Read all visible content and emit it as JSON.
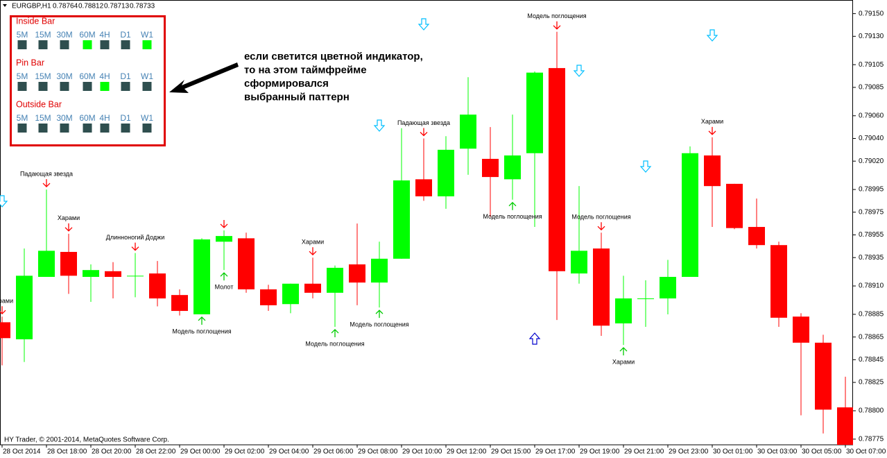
{
  "chart_data": {
    "type": "candlestick",
    "title": "EURGBP,H1",
    "ohlc_header": [
      0.78764,
      0.78812,
      0.78713,
      0.78733
    ],
    "copyright": "HY Trader, © 2001-2014, MetaQuotes Software Corp.",
    "categories": [
      "28 Oct 2014",
      null,
      "28 Oct 18:00",
      null,
      "28 Oct 20:00",
      null,
      "28 Oct 22:00",
      null,
      "29 Oct 00:00",
      null,
      "29 Oct 02:00",
      null,
      "29 Oct 04:00",
      null,
      "29 Oct 06:00",
      null,
      "29 Oct 08:00",
      null,
      "29 Oct 10:00",
      null,
      "29 Oct 12:00",
      null,
      "29 Oct 15:00",
      null,
      "29 Oct 17:00",
      null,
      "29 Oct 19:00",
      null,
      "29 Oct 21:00",
      null,
      "29 Oct 23:00",
      null,
      "30 Oct 01:00",
      null,
      "30 Oct 03:00",
      null,
      "30 Oct 05:00",
      null,
      "30 Oct 07:00"
    ],
    "open": [
      0.78878,
      0.78863,
      0.78918,
      0.7894,
      0.78918,
      0.78923,
      0.78919,
      0.78921,
      0.78902,
      0.78885,
      0.78949,
      0.78952,
      0.78907,
      0.78894,
      0.78912,
      0.78904,
      0.78929,
      0.78913,
      0.78934,
      0.79004,
      0.78989,
      0.79031,
      0.79022,
      0.79004,
      0.79027,
      0.79102,
      0.78921,
      0.78943,
      0.78877,
      0.78899,
      0.78899,
      0.78918,
      0.79025,
      0.79,
      0.78962,
      0.78946,
      0.78883,
      0.7886,
      0.78803
    ],
    "high": [
      0.78883,
      0.78943,
      0.78995,
      0.78956,
      0.78929,
      0.78931,
      0.78939,
      0.78932,
      0.78907,
      0.78952,
      0.78959,
      0.78957,
      0.78911,
      0.78912,
      0.78935,
      0.78928,
      0.78965,
      0.78949,
      0.79049,
      0.7904,
      0.79042,
      0.79094,
      0.7905,
      0.79061,
      0.79099,
      0.79134,
      0.78998,
      0.78957,
      0.78919,
      0.78915,
      0.78933,
      0.79033,
      0.79041,
      0.79,
      0.78987,
      0.78949,
      0.78886,
      0.78867,
      0.7883
    ],
    "low": [
      0.7884,
      0.78843,
      0.78918,
      0.78903,
      0.78896,
      0.78899,
      0.789,
      0.78892,
      0.78884,
      0.78885,
      0.78924,
      0.78904,
      0.78888,
      0.78886,
      0.78899,
      0.78874,
      0.78893,
      0.78891,
      0.78934,
      0.78985,
      0.78978,
      0.79008,
      0.78971,
      0.78986,
      0.78962,
      0.7888,
      0.78912,
      0.78866,
      0.78858,
      0.78874,
      0.78885,
      0.78918,
      0.78962,
      0.7896,
      0.78943,
      0.78874,
      0.78796,
      0.7878,
      0.7877
    ],
    "close": [
      0.78864,
      0.78919,
      0.78941,
      0.78919,
      0.78924,
      0.78918,
      0.78919,
      0.78899,
      0.78888,
      0.78951,
      0.78954,
      0.78907,
      0.78893,
      0.78912,
      0.78904,
      0.78926,
      0.78913,
      0.78934,
      0.79003,
      0.78989,
      0.7903,
      0.79061,
      0.79006,
      0.79025,
      0.79098,
      0.78923,
      0.78941,
      0.78875,
      0.78899,
      0.78899,
      0.78918,
      0.79027,
      0.78998,
      0.78961,
      0.78946,
      0.78882,
      0.7886,
      0.78801,
      0.7877
    ],
    "up_color": "#00ff00",
    "down_color": "#ff0000",
    "ylim": [
      0.7877,
      0.79162
    ],
    "yticks": [
      {
        "value": 0.7915,
        "label": "0.79150"
      },
      {
        "value": 0.7913,
        "label": "0.79130"
      },
      0.79105,
      0.79085,
      {
        "value": 0.7906,
        "label": "0.79060"
      },
      {
        "value": 0.7904,
        "label": "0.79040"
      },
      {
        "value": 0.7902,
        "label": "0.79020"
      },
      0.78995,
      0.78975,
      0.78955,
      0.78935,
      {
        "value": 0.7891,
        "label": "0.78910"
      },
      0.78885,
      0.78865,
      0.78845,
      0.78825,
      {
        "value": 0.788,
        "label": "0.78800"
      },
      0.78775
    ],
    "annotation_colors": {
      "above": "#ff0000",
      "below": "#00cc00"
    },
    "annotations": [
      {
        "text": "Харами",
        "candle": 0,
        "side": "above"
      },
      {
        "text": "Падающая звезда",
        "candle": 2,
        "side": "above"
      },
      {
        "text": "Харами",
        "candle": 3,
        "side": "above"
      },
      {
        "text": "Длинноногий Доджи",
        "candle": 6,
        "side": "above"
      },
      {
        "text": "Модель поглощения",
        "candle": 9,
        "side": "below"
      },
      {
        "candle": 10,
        "side": "above"
      },
      {
        "text": "Молот",
        "candle": 10,
        "side": "below"
      },
      {
        "text": "Харами",
        "candle": 14,
        "side": "above"
      },
      {
        "text": "Модель поглощения",
        "candle": 15,
        "side": "below"
      },
      {
        "text": "Модель поглощения",
        "candle": 17,
        "side": "below"
      },
      {
        "text": "Падающая звезда",
        "candle": 19,
        "side": "above"
      },
      {
        "text": "Модель поглощения",
        "candle": 23,
        "side": "below"
      },
      {
        "text": "Модель поглощения",
        "candle": 25,
        "side": "above"
      },
      {
        "text": "Модель поглощения",
        "candle": 27,
        "side": "above"
      },
      {
        "text": "Харами",
        "candle": 28,
        "side": "below"
      },
      {
        "text": "Харами",
        "candle": 32,
        "side": "above"
      }
    ]
  },
  "panel": {
    "timeframes": [
      "5M",
      "15M",
      "30M",
      "60M",
      "4H",
      "D1",
      "W1"
    ],
    "active_color": "#00ff00",
    "inactive_color": "#2f4f4f",
    "rows": [
      {
        "name": "Inside Bar",
        "active": [
          false,
          false,
          false,
          true,
          false,
          false,
          true
        ]
      },
      {
        "name": "Pin Bar",
        "active": [
          false,
          false,
          false,
          false,
          true,
          false,
          false
        ]
      },
      {
        "name": "Outside Bar",
        "active": [
          false,
          false,
          false,
          false,
          false,
          false,
          false
        ]
      }
    ]
  },
  "note": [
    "если светится цветной индикатор,",
    "то на этом таймфрейме",
    "сформировался",
    "выбранный паттерн"
  ]
}
